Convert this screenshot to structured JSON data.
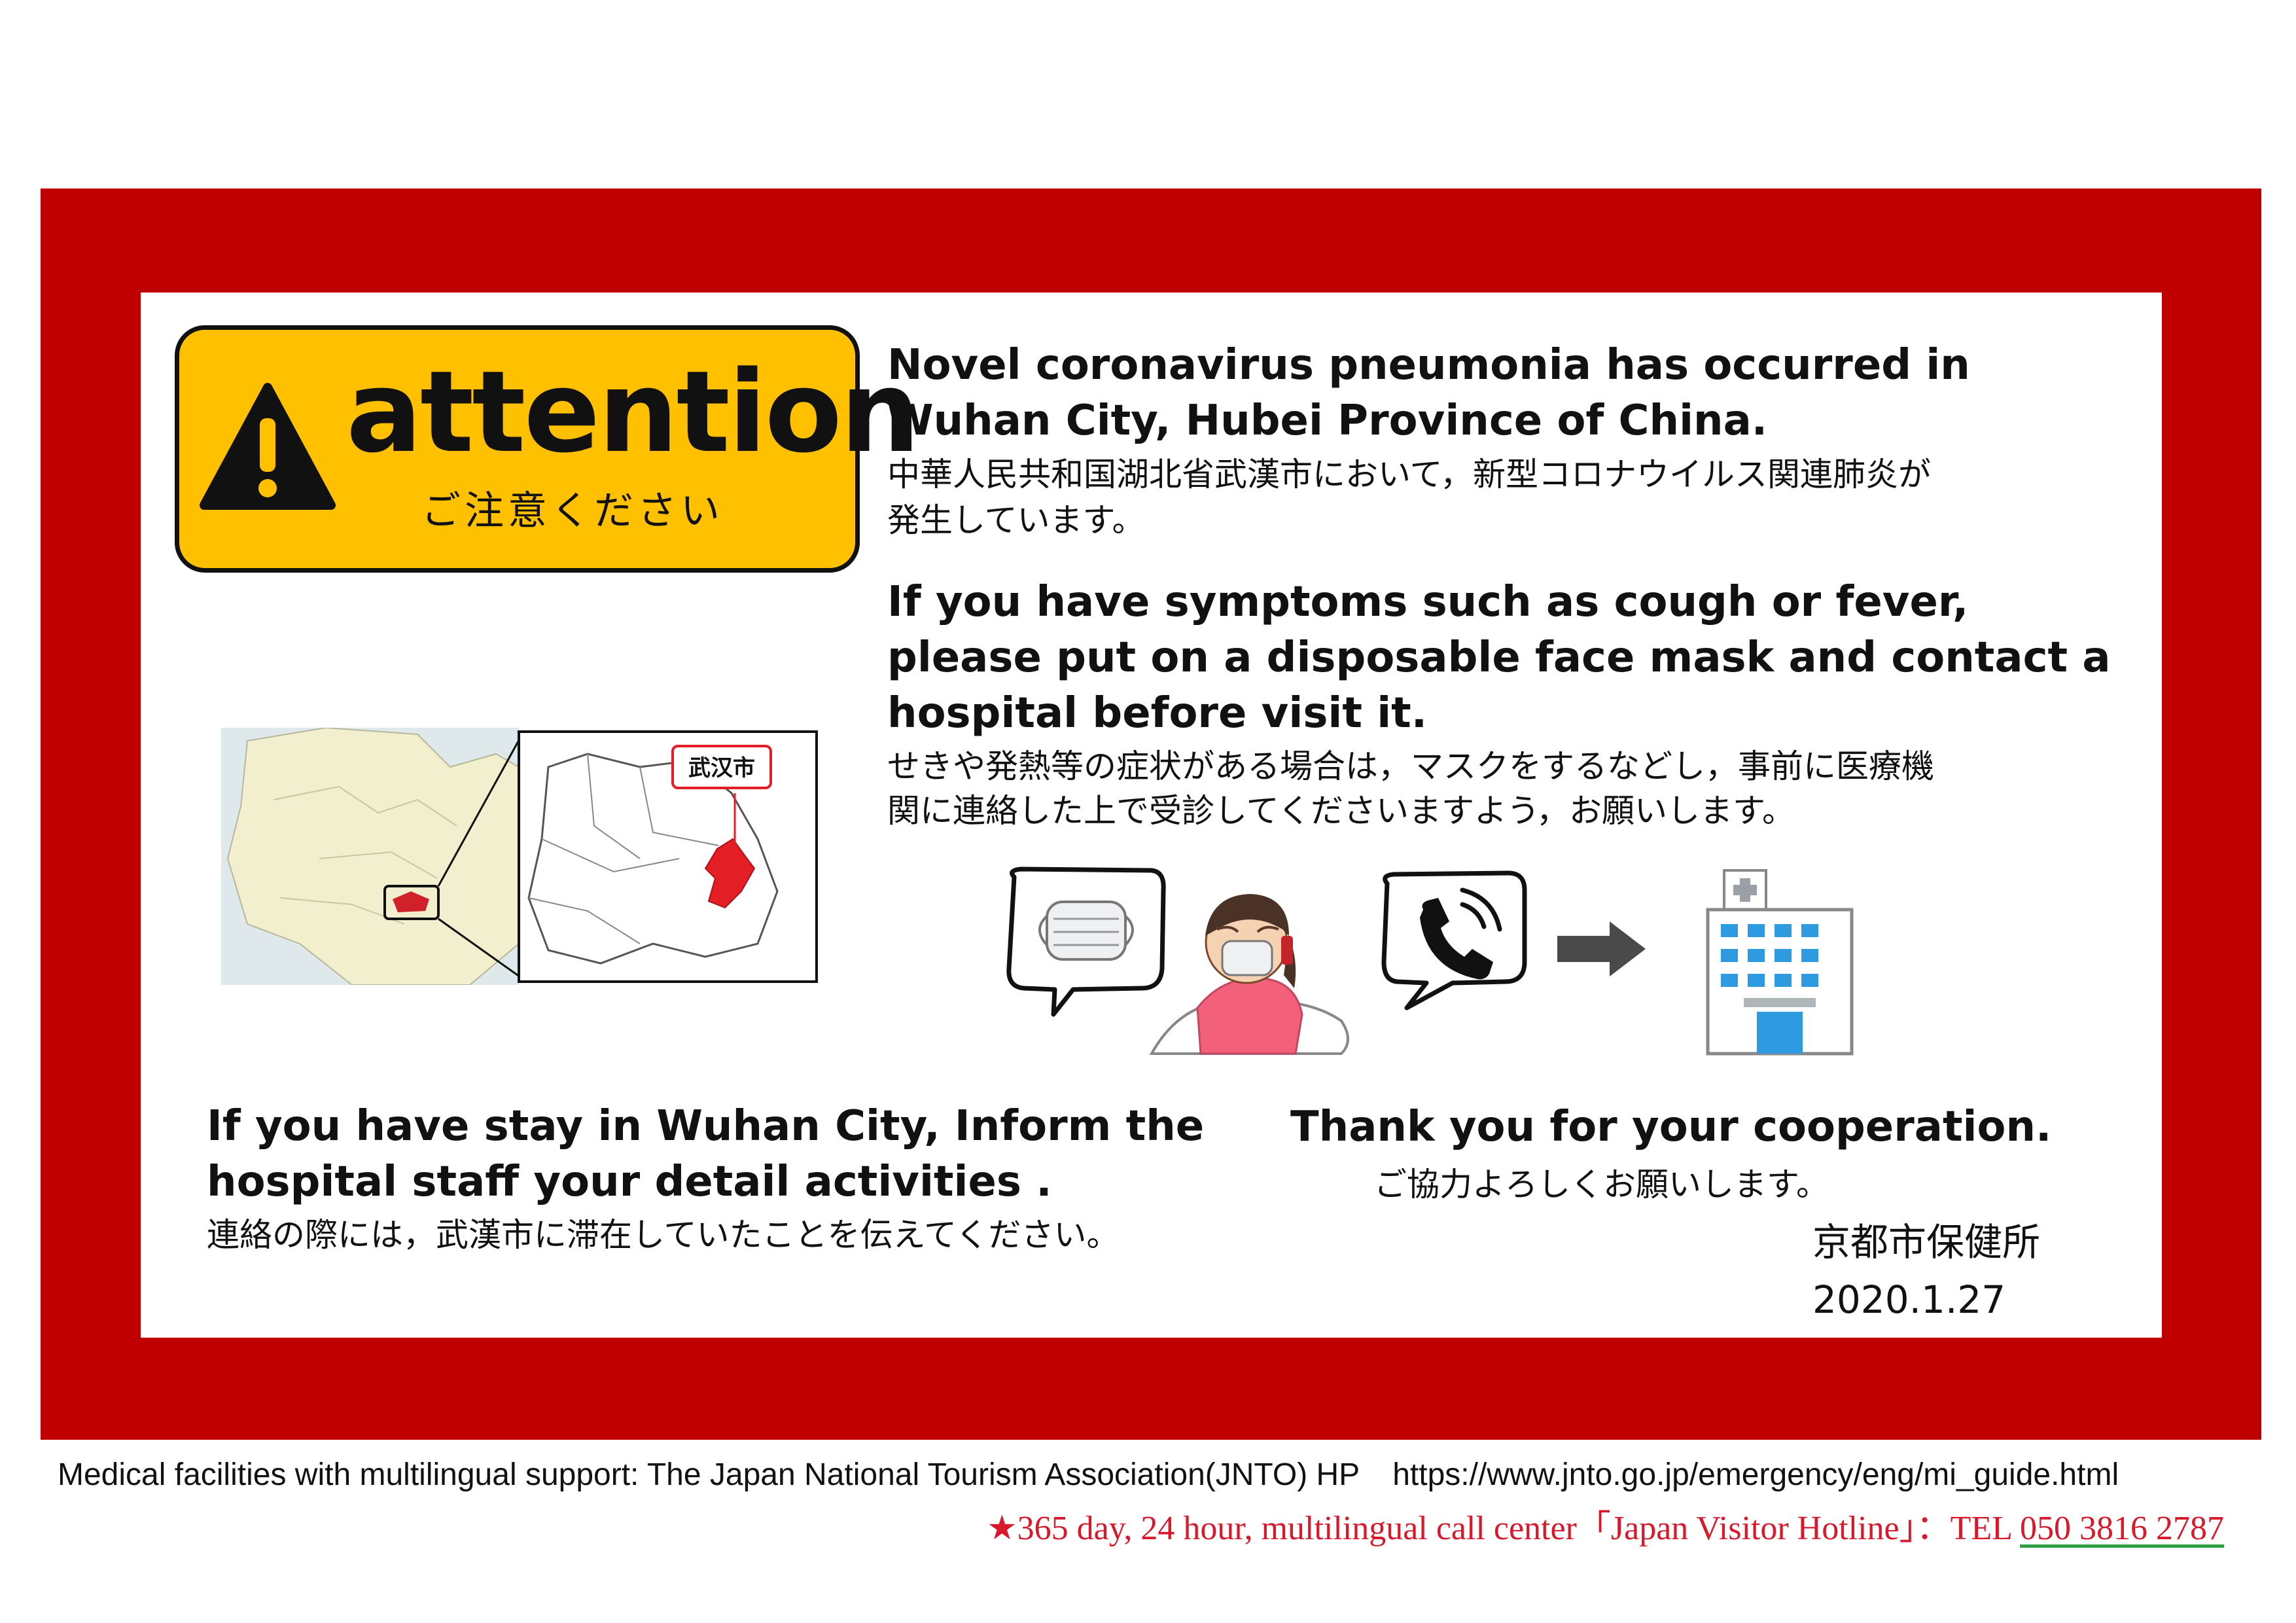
{
  "attention": {
    "word": "attention",
    "sub": "ご注意ください"
  },
  "block1": {
    "en1": "Novel coronavirus pneumonia has occurred in",
    "en2": "Wuhan City, Hubei Province of China.",
    "jp1": "中華人民共和国湖北省武漢市において，新型コロナウイルス関連肺炎が",
    "jp2": "発生しています。"
  },
  "block2": {
    "en1": "If you have symptoms such as cough or fever,",
    "en2": "please put on a disposable face mask and contact a",
    "en3": "hospital before visit it.",
    "jp1": "せきや発熱等の症状がある場合は，マスクをするなどし，事前に医療機",
    "jp2": "関に連絡した上で受診してくださいますよう，お願いします。"
  },
  "map": {
    "label": "武汉市"
  },
  "block3": {
    "en1": "If you have stay in Wuhan City, Inform the",
    "en2": "hospital staff your detail activities .",
    "jp1": "連絡の際には，武漢市に滞在していたことを伝えてください。"
  },
  "thanks": {
    "en": "Thank you for your cooperation.",
    "jp": "ご協力よろしくお願いします。"
  },
  "signature": {
    "org": "京都市保健所",
    "date": "2020.1.27"
  },
  "footer": {
    "line1": "Medical facilities with multilingual support: The Japan National Tourism Association(JNTO) HP",
    "url": "https://www.jnto.go.jp/emergency/eng/mi_guide.html",
    "line2": "★365 day, 24 hour, multilingual call center「Japan Visitor Hotline」：TEL ",
    "tel": "050 3816 2787"
  },
  "colors": {
    "frame": "#c00000",
    "banner": "#ffc000",
    "footer_red": "#d7192b",
    "wuhan": "#e31e24"
  },
  "icons": [
    "warning-icon",
    "mask-bubble-icon",
    "sick-person-icon",
    "phone-bubble-icon",
    "arrow-right-icon",
    "hospital-icon"
  ]
}
